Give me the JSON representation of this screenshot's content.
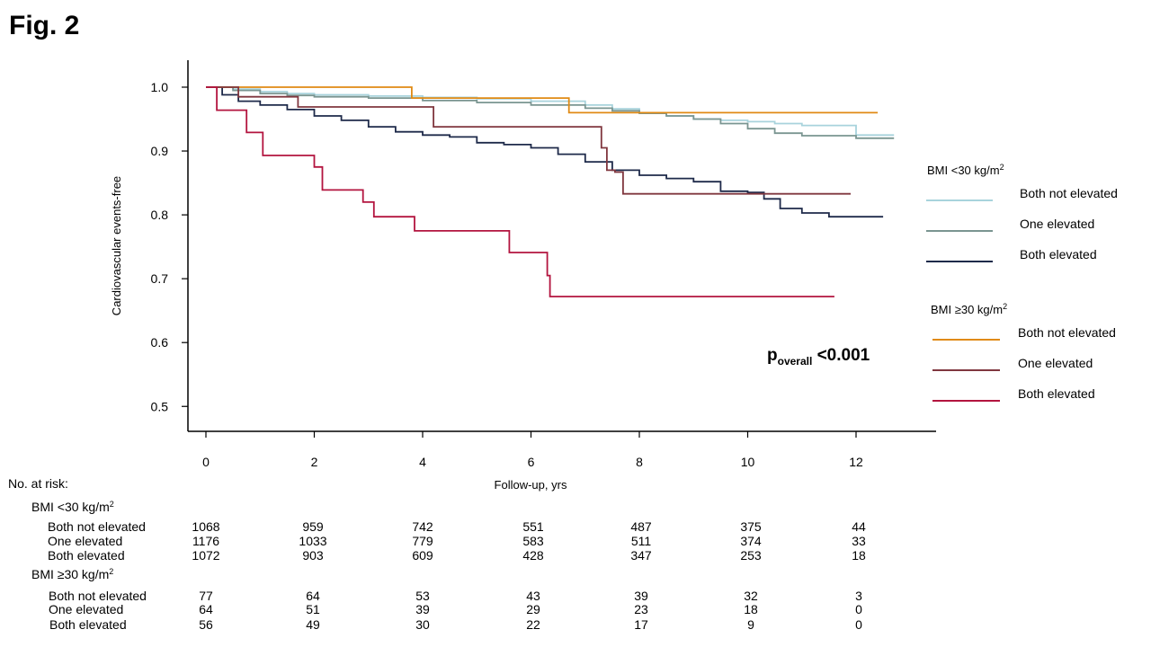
{
  "figure_label": "Fig. 2",
  "chart_data": {
    "type": "line",
    "ylabel": "Cardiovascular events-free",
    "xlabel": "Follow-up, yrs",
    "xlim": [
      -0.3,
      13.5
    ],
    "ylim": [
      0.46,
      1.04
    ],
    "x_ticks": [
      0,
      2,
      4,
      6,
      8,
      10,
      12
    ],
    "y_ticks": [
      0.5,
      0.6,
      0.7,
      0.8,
      0.9,
      1.0
    ],
    "y_tick_labels": [
      "0.5",
      "0.6",
      "0.7",
      "0.8",
      "0.9",
      "1.0"
    ],
    "grid": false,
    "legend_position": "right",
    "legend_groups": [
      {
        "title_prefix": "BMI <30 kg/m",
        "title_sup": "2",
        "entries": [
          "Both not elevated",
          "One elevated",
          "Both elevated"
        ]
      },
      {
        "title_prefix": "BMI ≥30 kg/m",
        "title_sup": "2",
        "entries": [
          "Both not elevated",
          "One elevated",
          "Both elevated"
        ]
      }
    ],
    "annotation": {
      "main": "p",
      "sub": "overall",
      "rest": " <0.001"
    },
    "series": [
      {
        "color": "#a8d3dc",
        "x": [
          0,
          0.5,
          1,
          1.5,
          2,
          3,
          4,
          5,
          6,
          7,
          7.5,
          8,
          8.5,
          9,
          9.5,
          10,
          10.5,
          11,
          11.5,
          12,
          12.7
        ],
        "y": [
          1.0,
          0.997,
          0.993,
          0.99,
          0.988,
          0.986,
          0.984,
          0.982,
          0.978,
          0.972,
          0.966,
          0.96,
          0.955,
          0.95,
          0.948,
          0.946,
          0.943,
          0.94,
          0.94,
          0.925,
          0.925
        ]
      },
      {
        "color": "#7a9591",
        "x": [
          0,
          0.5,
          1,
          1.5,
          2,
          3,
          4,
          5,
          6,
          7,
          7.5,
          8,
          8.5,
          9,
          9.5,
          10,
          10.5,
          11,
          11.5,
          12,
          12.7
        ],
        "y": [
          1.0,
          0.995,
          0.99,
          0.987,
          0.985,
          0.983,
          0.979,
          0.976,
          0.972,
          0.967,
          0.963,
          0.959,
          0.955,
          0.95,
          0.943,
          0.935,
          0.928,
          0.924,
          0.924,
          0.92,
          0.92
        ]
      },
      {
        "color": "#1e2a4a",
        "x": [
          0,
          0.3,
          0.6,
          1,
          1.5,
          2,
          2.5,
          3,
          3.5,
          4,
          4.5,
          5,
          5.5,
          6,
          6.5,
          7,
          7.5,
          8,
          8.5,
          9,
          9.5,
          10,
          10.3,
          10.6,
          11,
          11.5,
          12,
          12.5
        ],
        "y": [
          1.0,
          0.988,
          0.978,
          0.972,
          0.965,
          0.955,
          0.948,
          0.938,
          0.93,
          0.925,
          0.922,
          0.913,
          0.91,
          0.905,
          0.895,
          0.883,
          0.87,
          0.862,
          0.857,
          0.852,
          0.837,
          0.835,
          0.825,
          0.81,
          0.803,
          0.797,
          0.797,
          0.797
        ]
      },
      {
        "color": "#e08a14",
        "x": [
          0,
          3.8,
          6.7,
          12.4
        ],
        "y": [
          1.0,
          0.983,
          0.96,
          0.96
        ]
      },
      {
        "color": "#80373f",
        "x": [
          0,
          0.6,
          1.7,
          4.2,
          7.3,
          7.4,
          7.55,
          7.7,
          11.9
        ],
        "y": [
          1.0,
          0.985,
          0.969,
          0.938,
          0.905,
          0.87,
          0.867,
          0.833,
          0.833
        ]
      },
      {
        "color": "#b3143f",
        "x": [
          0,
          0.2,
          0.75,
          1.05,
          2.0,
          2.15,
          2.9,
          3.1,
          3.85,
          5.6,
          6.3,
          6.35,
          11.6
        ],
        "y": [
          1.0,
          0.964,
          0.929,
          0.893,
          0.875,
          0.839,
          0.82,
          0.797,
          0.775,
          0.741,
          0.705,
          0.672,
          0.672
        ]
      }
    ]
  },
  "risk_table": {
    "heading": "No. at risk:",
    "groups": [
      {
        "title_prefix": "BMI <30 kg/m",
        "title_sup": "2",
        "rows": [
          {
            "label": "Both not elevated",
            "values": [
              "1068",
              "959",
              "742",
              "551",
              "487",
              "375",
              "44"
            ]
          },
          {
            "label": "One elevated",
            "values": [
              "1176",
              "1033",
              "779",
              "583",
              "511",
              "374",
              "33"
            ]
          },
          {
            "label": "Both elevated",
            "values": [
              "1072",
              "903",
              "609",
              "428",
              "347",
              "253",
              "18"
            ]
          }
        ]
      },
      {
        "title_prefix": "BMI ≥30 kg/m",
        "title_sup": "2",
        "rows": [
          {
            "label": "Both not elevated",
            "values": [
              "77",
              "64",
              "53",
              "43",
              "39",
              "32",
              "3"
            ]
          },
          {
            "label": "One elevated",
            "values": [
              "64",
              "51",
              "39",
              "29",
              "23",
              "18",
              "0"
            ]
          },
          {
            "label": "Both elevated",
            "values": [
              "56",
              "49",
              "30",
              "22",
              "17",
              "9",
              "0"
            ]
          }
        ]
      }
    ]
  }
}
